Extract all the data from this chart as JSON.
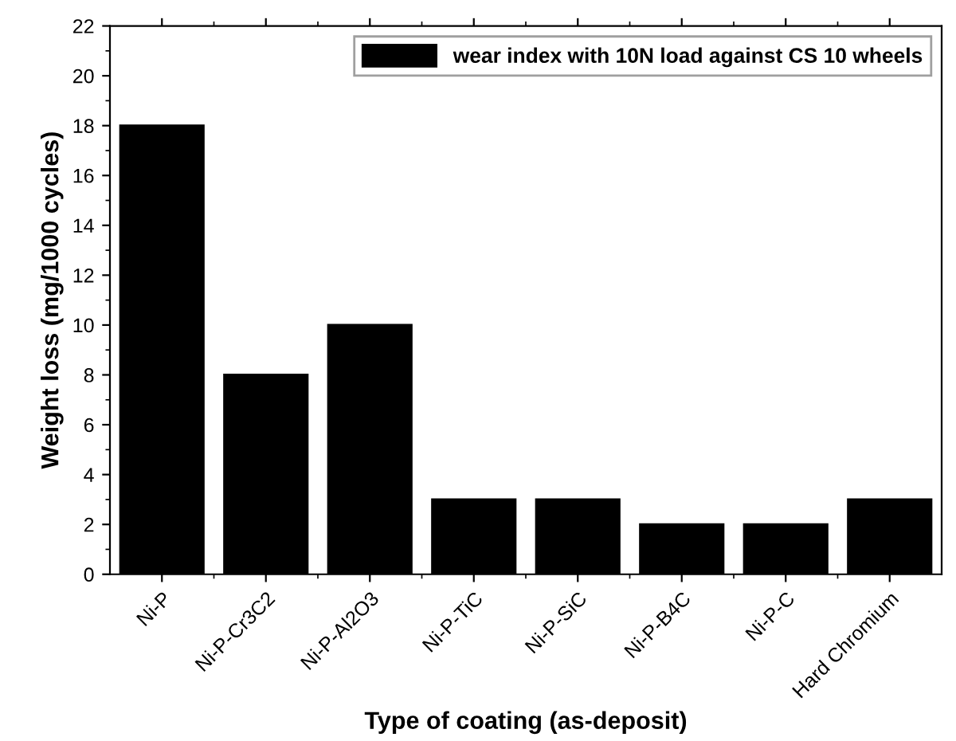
{
  "chart_data": {
    "type": "bar",
    "xlabel": "Type of coating (as-deposit)",
    "ylabel": "Weight loss (mg/1000 cycles)",
    "categories": [
      "Ni-P",
      "Ni-P-Cr3C2",
      "Ni-P-Al2O3",
      "Ni-P-TiC",
      "Ni-P-SiC",
      "Ni-P-B4C",
      "Ni-P-C",
      "Hard Chromium"
    ],
    "series": [
      {
        "name": "wear index with 10N load against CS 10 wheels",
        "color": "#000000",
        "values": [
          18,
          8,
          10,
          3,
          3,
          2,
          2,
          3
        ]
      }
    ],
    "ylim": [
      0,
      22
    ],
    "yticks": [
      0,
      2,
      4,
      6,
      8,
      10,
      12,
      14,
      16,
      18,
      20,
      22
    ],
    "legend": "top right",
    "grid": false
  }
}
